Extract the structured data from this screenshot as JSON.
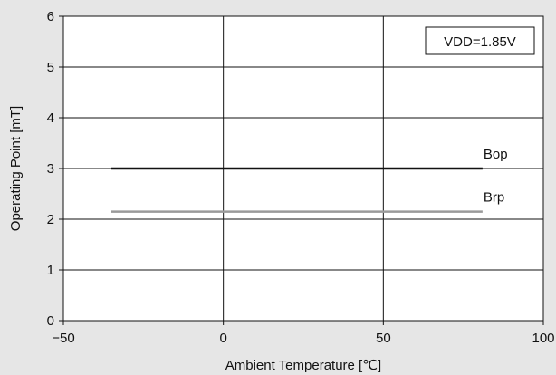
{
  "chart_data": {
    "type": "line",
    "xlabel": "Ambient Temperature [℃]",
    "ylabel": "Operating Point [mT]",
    "xlim": [
      -50,
      100
    ],
    "ylim": [
      0,
      6
    ],
    "xticks": [
      -50,
      0,
      50,
      100
    ],
    "xtick_labels": [
      "−50",
      "0",
      "50",
      "100"
    ],
    "yticks": [
      0,
      1,
      2,
      3,
      4,
      5,
      6
    ],
    "ytick_labels": [
      "0",
      "1",
      "2",
      "3",
      "4",
      "5",
      "6"
    ],
    "grid": true,
    "annotation": "VDD=1.85V",
    "series": [
      {
        "name": "Bop",
        "x": [
          -35,
          81
        ],
        "y": [
          3.0,
          3.0
        ],
        "color": "#111111"
      },
      {
        "name": "Brp",
        "x": [
          -35,
          81
        ],
        "y": [
          2.15,
          2.15
        ],
        "color": "#9a9a9a"
      }
    ]
  }
}
